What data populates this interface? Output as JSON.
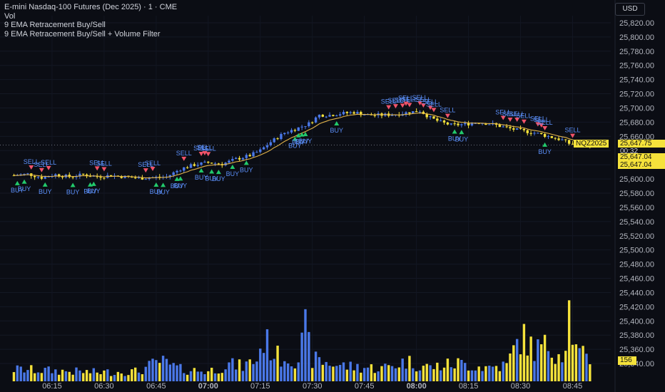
{
  "legend": {
    "title": "E-mini Nasdaq-100 Futures (Dec 2025) · 1 · CME",
    "line2": "Vol",
    "line3": "9 EMA Retracement Buy/Sell",
    "line4": "9 EMA Retracement Buy/Sell + Volume Filter"
  },
  "currency_button": "USD",
  "badges": {
    "symbol": "NQZ2025",
    "last_price": "25,647.75",
    "countdown": "00:32",
    "price_2": "25,647.04",
    "price_3": "25,647.04",
    "volume": "156"
  },
  "colors": {
    "background": "#0b0d14",
    "up": "#4a78e8",
    "down": "#f5e23b",
    "ema": "#e0b24a",
    "buy": "#22c96b",
    "sell": "#f0536a",
    "signal_text": "#5b8ff9"
  },
  "chart_data": {
    "type": "candlestick",
    "y_axis": {
      "range": [
        25330,
        25830
      ],
      "tick_labels": [
        "25,820.00",
        "25,800.00",
        "25,780.00",
        "25,760.00",
        "25,740.00",
        "25,720.00",
        "25,700.00",
        "25,680.00",
        "25,660.00",
        "25,640.00",
        "25,620.00",
        "25,600.00",
        "25,580.00",
        "25,560.00",
        "25,540.00",
        "25,520.00",
        "25,500.00",
        "25,480.00",
        "25,460.00",
        "25,440.00",
        "25,420.00",
        "25,400.00",
        "25,380.00",
        "25,360.00",
        "25,340.00"
      ],
      "tick_values": [
        25820,
        25800,
        25780,
        25760,
        25740,
        25720,
        25700,
        25680,
        25660,
        25640,
        25620,
        25600,
        25580,
        25560,
        25540,
        25520,
        25500,
        25480,
        25460,
        25440,
        25420,
        25400,
        25380,
        25360,
        25340
      ]
    },
    "x_axis": {
      "tick_labels": [
        "06:15",
        "06:30",
        "06:45",
        "07:00",
        "07:15",
        "07:30",
        "07:45",
        "08:00",
        "08:15",
        "08:30",
        "08:45"
      ],
      "tick_minutes": [
        15,
        30,
        45,
        60,
        75,
        90,
        105,
        120,
        135,
        150,
        165
      ],
      "bold_labels": [
        "07:00",
        "08:00"
      ],
      "first_bar_minute": 4,
      "last_bar_minute": 170
    },
    "last_price_line": 25647.75,
    "price_keyframes": [
      [
        4,
        25605
      ],
      [
        8,
        25607
      ],
      [
        12,
        25602
      ],
      [
        16,
        25606
      ],
      [
        20,
        25603
      ],
      [
        24,
        25606
      ],
      [
        28,
        25603
      ],
      [
        32,
        25605
      ],
      [
        36,
        25603
      ],
      [
        40,
        25601
      ],
      [
        44,
        25602
      ],
      [
        48,
        25603
      ],
      [
        52,
        25614
      ],
      [
        56,
        25620
      ],
      [
        60,
        25623
      ],
      [
        64,
        25621
      ],
      [
        68,
        25628
      ],
      [
        72,
        25633
      ],
      [
        75,
        25640
      ],
      [
        78,
        25652
      ],
      [
        82,
        25665
      ],
      [
        86,
        25672
      ],
      [
        89,
        25678
      ],
      [
        92,
        25690
      ],
      [
        95,
        25690
      ],
      [
        98,
        25692
      ],
      [
        102,
        25694
      ],
      [
        106,
        25690
      ],
      [
        110,
        25690
      ],
      [
        114,
        25691
      ],
      [
        118,
        25694
      ],
      [
        121,
        25696
      ],
      [
        124,
        25686
      ],
      [
        127,
        25680
      ],
      [
        130,
        25676
      ],
      [
        134,
        25677
      ],
      [
        138,
        25680
      ],
      [
        142,
        25677
      ],
      [
        146,
        25672
      ],
      [
        150,
        25668
      ],
      [
        154,
        25665
      ],
      [
        158,
        25660
      ],
      [
        162,
        25655
      ],
      [
        164,
        25650
      ],
      [
        166,
        25648
      ],
      [
        170,
        25647.75
      ]
    ],
    "volume_keyframes": [
      [
        4,
        0.12
      ],
      [
        20,
        0.1
      ],
      [
        28,
        0.09
      ],
      [
        40,
        0.1
      ],
      [
        46,
        0.2
      ],
      [
        52,
        0.12
      ],
      [
        60,
        0.1
      ],
      [
        66,
        0.17
      ],
      [
        70,
        0.15
      ],
      [
        74,
        0.22
      ],
      [
        76,
        0.42
      ],
      [
        80,
        0.25
      ],
      [
        86,
        0.23
      ],
      [
        88,
        0.5
      ],
      [
        90,
        0.22
      ],
      [
        95,
        0.18
      ],
      [
        100,
        0.15
      ],
      [
        110,
        0.13
      ],
      [
        117,
        0.2
      ],
      [
        124,
        0.14
      ],
      [
        132,
        0.18
      ],
      [
        140,
        0.14
      ],
      [
        146,
        0.16
      ],
      [
        150,
        0.45
      ],
      [
        154,
        0.32
      ],
      [
        158,
        0.35
      ],
      [
        162,
        0.28
      ],
      [
        164,
        0.72
      ],
      [
        166,
        0.3
      ],
      [
        170,
        0.2
      ]
    ],
    "volume_axis": {
      "max_bar_label": "156"
    },
    "buy_signals": [
      5,
      7,
      13,
      21,
      26,
      27,
      45,
      47,
      51,
      52,
      58,
      61,
      63,
      67,
      71,
      85,
      86,
      87,
      88,
      97,
      131,
      133,
      157
    ],
    "sell_signals": [
      9,
      12,
      14,
      28,
      30,
      42,
      44,
      53,
      58,
      59,
      60,
      112,
      114,
      116,
      117,
      118,
      121,
      122,
      124,
      125,
      129,
      145,
      147,
      149,
      151,
      155,
      156,
      157,
      165
    ],
    "signal_labels": {
      "buy": "BUY",
      "sell": "SELL"
    },
    "ema_period": 9
  }
}
